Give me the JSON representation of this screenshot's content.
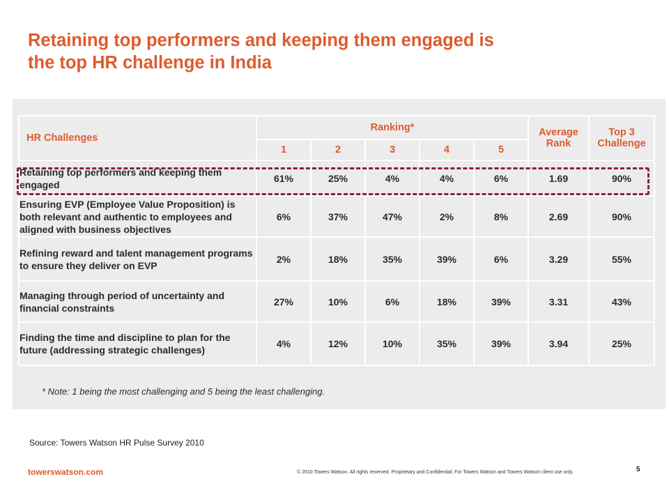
{
  "title": {
    "line1": "Retaining top performers and keeping them engaged is",
    "line2": "the top HR challenge in India"
  },
  "table": {
    "header_challenges": "HR Challenges",
    "header_ranking": "Ranking*",
    "rank_columns": [
      "1",
      "2",
      "3",
      "4",
      "5"
    ],
    "header_average": "Average Rank",
    "header_top3": "Top 3 Challenge",
    "rows": [
      {
        "label": "Retaining top performers and keeping them engaged",
        "values": [
          "61%",
          "25%",
          "4%",
          "4%",
          "6%"
        ],
        "avg": "1.69",
        "top3": "90%"
      },
      {
        "label": "Ensuring EVP (Employee Value Proposition) is both relevant and authentic to employees and aligned with business objectives",
        "values": [
          "6%",
          "37%",
          "47%",
          "2%",
          "8%"
        ],
        "avg": "2.69",
        "top3": "90%"
      },
      {
        "label": "Refining reward and talent management programs to ensure they deliver on EVP",
        "values": [
          "2%",
          "18%",
          "35%",
          "39%",
          "6%"
        ],
        "avg": "3.29",
        "top3": "55%"
      },
      {
        "label": "Managing through period of uncertainty and financial constraints",
        "values": [
          "27%",
          "10%",
          "6%",
          "18%",
          "39%"
        ],
        "avg": "3.31",
        "top3": "43%"
      },
      {
        "label": "Finding the time and discipline to plan for the future (addressing strategic challenges)",
        "values": [
          "4%",
          "12%",
          "10%",
          "35%",
          "39%"
        ],
        "avg": "3.94",
        "top3": "25%"
      }
    ],
    "note": "* Note: 1 being the most challenging and 5 being the least challenging."
  },
  "source": "Source: Towers Watson HR Pulse Survey 2010",
  "footer": {
    "brand": "towerswatson.com",
    "copyright": "© 2010 Towers Watson. All rights reserved. Proprietary and Confidential. For Towers Watson and Towers Watson client use only.",
    "page_number": "5"
  },
  "colors": {
    "accent": "#e05a2b",
    "highlight_border": "#8c1c4c",
    "table_background": "#ececec"
  }
}
